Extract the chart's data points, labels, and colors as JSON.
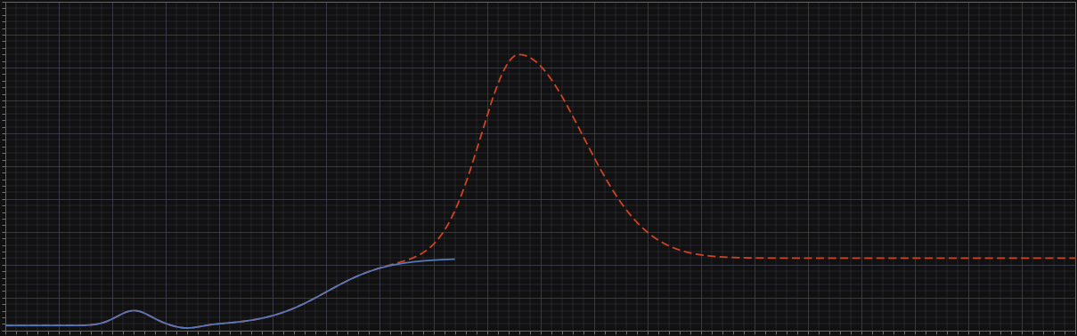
{
  "background_color": "#111111",
  "plot_bg_color": "#111111",
  "grid_color": "#444455",
  "line1_color": "#5577bb",
  "line2_color": "#cc4422",
  "line_width": 1.3,
  "figsize": [
    12.09,
    3.78
  ],
  "dpi": 100,
  "xlim": [
    0,
    100
  ],
  "ylim": [
    0,
    10
  ],
  "x_major": 5,
  "y_major": 1,
  "x_minor": 1,
  "y_minor": 0.2
}
